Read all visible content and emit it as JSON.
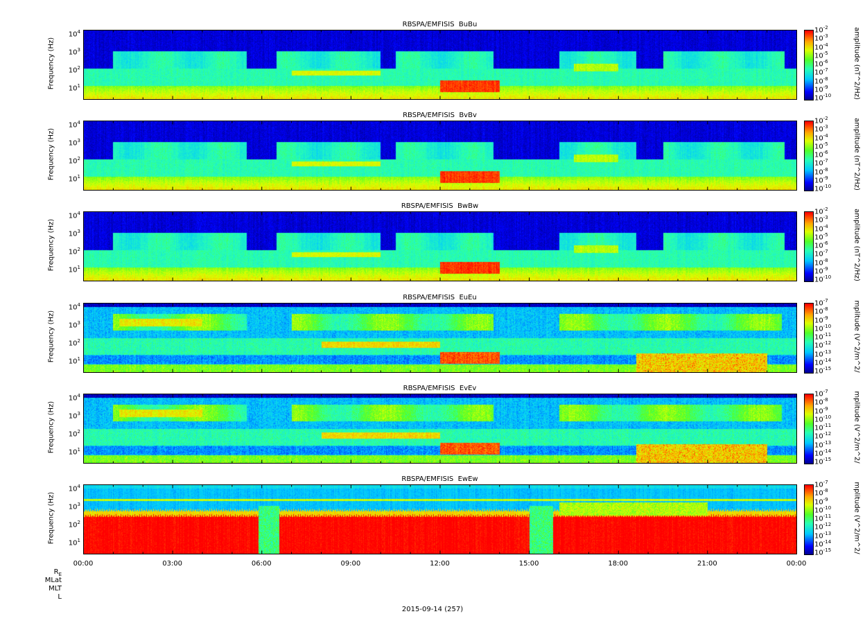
{
  "figure": {
    "date_label": "2015-09-14 (257)",
    "x_ticks": [
      "00:00",
      "03:00",
      "06:00",
      "09:00",
      "12:00",
      "15:00",
      "18:00",
      "21:00",
      "00:00"
    ],
    "ephemeris_labels": [
      "R_E",
      "MLat",
      "MLT",
      "L"
    ]
  },
  "chart_data": [
    {
      "type": "heatmap",
      "title": "RBSPA/EMFISIS  BuBu",
      "ylabel": "Frequency (Hz)",
      "y_scale": "log",
      "y_ticks": [
        "10^1",
        "10^2",
        "10^3",
        "10^4"
      ],
      "colorbar_label": "amplitude (nT^2/Hz)",
      "colorbar_ticks": [
        "10^-2",
        "10^-3",
        "10^-4",
        "10^-5",
        "10^-6",
        "10^-7",
        "10^-8",
        "10^-9",
        "10^-10"
      ],
      "x_ticks": [
        "00:00",
        "03:00",
        "06:00",
        "09:00",
        "12:00",
        "15:00",
        "18:00",
        "21:00",
        "00:00"
      ]
    },
    {
      "type": "heatmap",
      "title": "RBSPA/EMFISIS  BvBv",
      "ylabel": "Frequency (Hz)",
      "y_scale": "log",
      "y_ticks": [
        "10^1",
        "10^2",
        "10^3",
        "10^4"
      ],
      "colorbar_label": "amplitude (nT^2/Hz)",
      "colorbar_ticks": [
        "10^-2",
        "10^-3",
        "10^-4",
        "10^-5",
        "10^-6",
        "10^-7",
        "10^-8",
        "10^-9",
        "10^-10"
      ],
      "x_ticks": [
        "00:00",
        "03:00",
        "06:00",
        "09:00",
        "12:00",
        "15:00",
        "18:00",
        "21:00",
        "00:00"
      ]
    },
    {
      "type": "heatmap",
      "title": "RBSPA/EMFISIS  BwBw",
      "ylabel": "Frequency (Hz)",
      "y_scale": "log",
      "y_ticks": [
        "10^1",
        "10^2",
        "10^3",
        "10^4"
      ],
      "colorbar_label": "amplitude (nT^2/Hz)",
      "colorbar_ticks": [
        "10^-2",
        "10^-3",
        "10^-4",
        "10^-5",
        "10^-6",
        "10^-7",
        "10^-8",
        "10^-9",
        "10^-10"
      ],
      "x_ticks": [
        "00:00",
        "03:00",
        "06:00",
        "09:00",
        "12:00",
        "15:00",
        "18:00",
        "21:00",
        "00:00"
      ]
    },
    {
      "type": "heatmap",
      "title": "RBSPA/EMFISIS  EuEu",
      "ylabel": "Frequency (Hz)",
      "y_scale": "log",
      "y_ticks": [
        "10^1",
        "10^2",
        "10^3",
        "10^4"
      ],
      "colorbar_label": "mplitude (V^2/m^2/",
      "colorbar_ticks": [
        "10^-7",
        "10^-8",
        "10^-9",
        "10^-10",
        "10^-11",
        "10^-12",
        "10^-13",
        "10^-14",
        "10^-15"
      ],
      "x_ticks": [
        "00:00",
        "03:00",
        "06:00",
        "09:00",
        "12:00",
        "15:00",
        "18:00",
        "21:00",
        "00:00"
      ]
    },
    {
      "type": "heatmap",
      "title": "RBSPA/EMFISIS  EvEv",
      "ylabel": "Frequency (Hz)",
      "y_scale": "log",
      "y_ticks": [
        "10^1",
        "10^2",
        "10^3",
        "10^4"
      ],
      "colorbar_label": "mplitude (V^2/m^2/",
      "colorbar_ticks": [
        "10^-7",
        "10^-8",
        "10^-9",
        "10^-10",
        "10^-11",
        "10^-12",
        "10^-13",
        "10^-14",
        "10^-15"
      ],
      "x_ticks": [
        "00:00",
        "03:00",
        "06:00",
        "09:00",
        "12:00",
        "15:00",
        "18:00",
        "21:00",
        "00:00"
      ]
    },
    {
      "type": "heatmap",
      "title": "RBSPA/EMFISIS  EwEw",
      "ylabel": "Frequency (Hz)",
      "y_scale": "log",
      "y_ticks": [
        "10^1",
        "10^2",
        "10^3",
        "10^4"
      ],
      "colorbar_label": "mplitude (V^2/m^2/",
      "colorbar_ticks": [
        "10^-7",
        "10^-8",
        "10^-9",
        "10^-10",
        "10^-11",
        "10^-12",
        "10^-13",
        "10^-14",
        "10^-15"
      ],
      "x_ticks": [
        "00:00",
        "03:00",
        "06:00",
        "09:00",
        "12:00",
        "15:00",
        "18:00",
        "21:00",
        "00:00"
      ]
    }
  ],
  "colors": {
    "background_low": "#0000b4",
    "cyan": "#00d8ff",
    "green": "#33ff33",
    "yellow": "#ffff00",
    "red": "#ff0000",
    "text": "#000000"
  }
}
